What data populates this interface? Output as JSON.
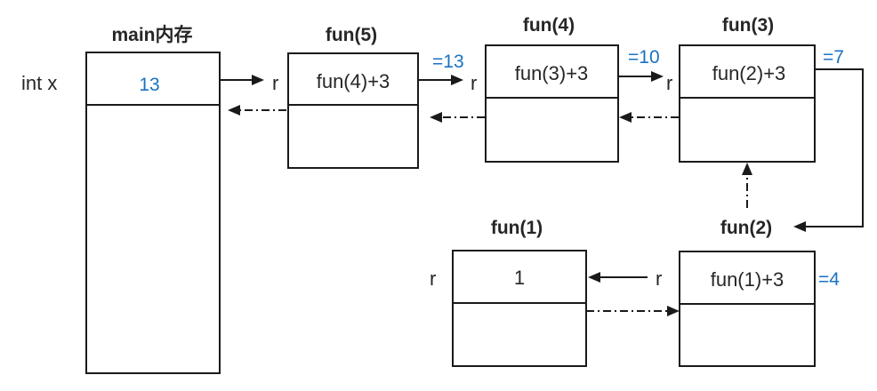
{
  "main": {
    "title": "main内存",
    "var_label": "int x",
    "value": "13"
  },
  "frames": {
    "f5": {
      "title": "fun(5)",
      "param": "r",
      "expr": "fun(4)+3",
      "result": "=13"
    },
    "f4": {
      "title": "fun(4)",
      "param": "r",
      "expr": "fun(3)+3",
      "result": "=10"
    },
    "f3": {
      "title": "fun(3)",
      "param": "r",
      "expr": "fun(2)+3",
      "result": "=7"
    },
    "f2": {
      "title": "fun(2)",
      "param": "r",
      "expr": "fun(1)+3",
      "result": "=4"
    },
    "f1": {
      "title": "fun(1)",
      "param": "r",
      "expr": "1"
    }
  },
  "colors": {
    "text": "#262626",
    "result": "#1a72c4",
    "stroke": "#1a1a1a"
  }
}
